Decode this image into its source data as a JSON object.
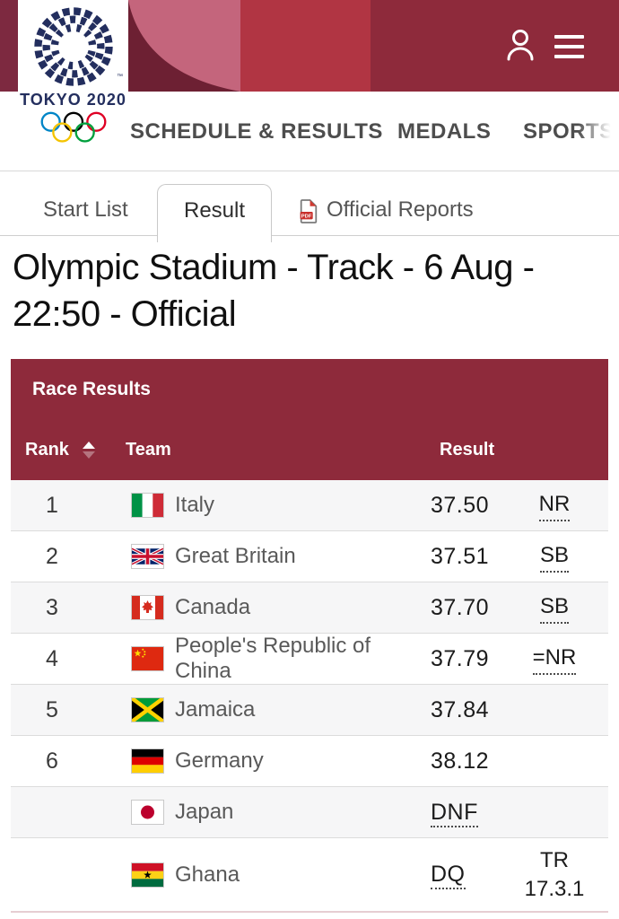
{
  "header": {
    "logo": {
      "title": "TOKYO 2020",
      "tm": "™",
      "emblem_icon": "tokyo-2020-emblem",
      "rings_icon": "olympic-rings"
    },
    "icons": {
      "profile": "person-icon",
      "menu": "hamburger-menu-icon"
    },
    "nav": [
      {
        "label": "SCHEDULE & RESULTS"
      },
      {
        "label": "MEDALS"
      },
      {
        "label": "SPORTS"
      }
    ],
    "colors": {
      "band_maroon": "#8e2a3b",
      "band_red": "#b13543",
      "band_pink": "#c4657c",
      "band_dark": "#6d2033"
    }
  },
  "tabs": [
    {
      "label": "Start List",
      "active": false
    },
    {
      "label": "Result",
      "active": true
    },
    {
      "label": "Official Reports",
      "active": false,
      "icon": "pdf-icon"
    }
  ],
  "page_title": "Olympic Stadium - Track - 6 Aug - 22:50 - Official",
  "table": {
    "title": "Race Results",
    "columns": {
      "rank": "Rank",
      "team": "Team",
      "result": "Result"
    },
    "sort": {
      "column": "Rank",
      "direction": "asc"
    },
    "header_color": "#8e2a3b",
    "rows": [
      {
        "rank": "1",
        "team": "Italy",
        "flag": "italy",
        "result": "37.50",
        "result_underline": false,
        "note": "NR",
        "note_underline": true
      },
      {
        "rank": "2",
        "team": "Great Britain",
        "flag": "great-britain",
        "result": "37.51",
        "result_underline": false,
        "note": "SB",
        "note_underline": true
      },
      {
        "rank": "3",
        "team": "Canada",
        "flag": "canada",
        "result": "37.70",
        "result_underline": false,
        "note": "SB",
        "note_underline": true
      },
      {
        "rank": "4",
        "team": "People's Republic of China",
        "flag": "china",
        "result": "37.79",
        "result_underline": false,
        "note": "=NR",
        "note_underline": true
      },
      {
        "rank": "5",
        "team": "Jamaica",
        "flag": "jamaica",
        "result": "37.84",
        "result_underline": false,
        "note": "",
        "note_underline": false
      },
      {
        "rank": "6",
        "team": "Germany",
        "flag": "germany",
        "result": "38.12",
        "result_underline": false,
        "note": "",
        "note_underline": false
      },
      {
        "rank": "",
        "team": "Japan",
        "flag": "japan",
        "result": "DNF",
        "result_underline": true,
        "note": "",
        "note_underline": false
      },
      {
        "rank": "",
        "team": "Ghana",
        "flag": "ghana",
        "result": "DQ",
        "result_underline": true,
        "note": "TR 17.3.1",
        "note_underline": false
      }
    ]
  }
}
